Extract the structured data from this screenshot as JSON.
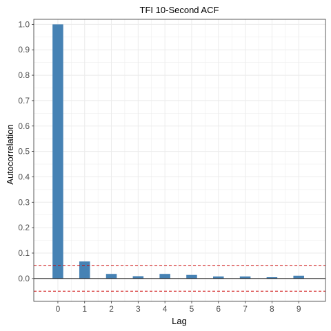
{
  "chart_data": {
    "type": "bar",
    "title": "TFI 10-Second ACF",
    "xlabel": "Lag",
    "ylabel": "Autocorrelation",
    "categories": [
      "0",
      "1",
      "2",
      "3",
      "4",
      "5",
      "6",
      "7",
      "8",
      "9"
    ],
    "x": [
      0,
      1,
      2,
      3,
      4,
      5,
      6,
      7,
      8,
      9
    ],
    "values": [
      1.0,
      0.067,
      0.018,
      0.009,
      0.018,
      0.014,
      0.008,
      0.008,
      0.005,
      0.011
    ],
    "ylim": [
      -0.09,
      1.02
    ],
    "xlim": [
      -0.9,
      10.0
    ],
    "yticks": [
      0.0,
      0.1,
      0.2,
      0.3,
      0.4,
      0.5,
      0.6,
      0.7,
      0.8,
      0.9,
      1.0
    ],
    "ytick_labels": [
      "0.0",
      "0.1",
      "0.2",
      "0.3",
      "0.4",
      "0.5",
      "0.6",
      "0.7",
      "0.8",
      "0.9",
      "1.0"
    ],
    "confidence_bounds": [
      0.05,
      -0.05
    ],
    "zero_line": 0.0,
    "grid": true,
    "colors": {
      "bar": "#4682b4",
      "bound_line": "#cc0000",
      "zero_line": "#000000",
      "grid": "#ebebeb",
      "panel_border": "#333333"
    }
  }
}
